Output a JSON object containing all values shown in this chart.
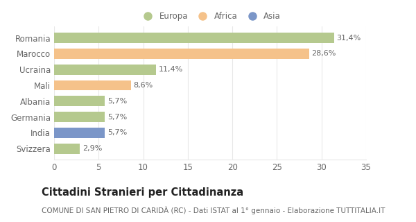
{
  "categories": [
    "Svizzera",
    "India",
    "Germania",
    "Albania",
    "Mali",
    "Ucraina",
    "Marocco",
    "Romania"
  ],
  "values": [
    2.9,
    5.7,
    5.7,
    5.7,
    8.6,
    11.4,
    28.6,
    31.4
  ],
  "labels": [
    "2,9%",
    "5,7%",
    "5,7%",
    "5,7%",
    "8,6%",
    "11,4%",
    "28,6%",
    "31,4%"
  ],
  "colors": [
    "#b5c98e",
    "#7b96c8",
    "#b5c98e",
    "#b5c98e",
    "#f5c28a",
    "#b5c98e",
    "#f5c28a",
    "#b5c98e"
  ],
  "legend": [
    {
      "label": "Europa",
      "color": "#b5c98e"
    },
    {
      "label": "Africa",
      "color": "#f5c28a"
    },
    {
      "label": "Asia",
      "color": "#7b96c8"
    }
  ],
  "xlim": [
    0,
    35
  ],
  "xticks": [
    0,
    5,
    10,
    15,
    20,
    25,
    30,
    35
  ],
  "title": "Cittadini Stranieri per Cittadinanza",
  "subtitle": "COMUNE DI SAN PIETRO DI CARIDÀ (RC) - Dati ISTAT al 1° gennaio - Elaborazione TUTTITALIA.IT",
  "bg_color": "#ffffff",
  "bar_height": 0.65,
  "label_fontsize": 8,
  "ytick_fontsize": 8.5,
  "xtick_fontsize": 8.5,
  "title_fontsize": 10.5,
  "subtitle_fontsize": 7.5,
  "grid_color": "#e8e8e8",
  "text_color": "#666666",
  "title_color": "#222222"
}
